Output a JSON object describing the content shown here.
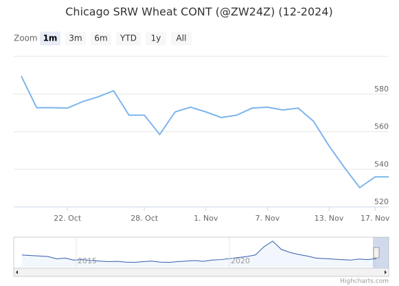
{
  "chart_data": {
    "type": "line",
    "title": "Chicago SRW Wheat CONT (@ZW24Z) (12-2024)",
    "zoom_label": "Zoom",
    "zoom_buttons": [
      "1m",
      "3m",
      "6m",
      "YTD",
      "1y",
      "All"
    ],
    "selected_button": 0,
    "categories": [
      null,
      null,
      null,
      "22. Oct",
      null,
      null,
      null,
      null,
      "28. Oct",
      null,
      null,
      null,
      "1. Nov",
      null,
      null,
      null,
      "7. Nov",
      null,
      null,
      null,
      "13. Nov",
      null,
      null,
      "17. Nov",
      null
    ],
    "series": [
      {
        "name": "ZW24Z",
        "color": "#7cb5ec",
        "values": [
          589.5,
          572.75,
          572.75,
          572.5,
          576,
          578.5,
          581.75,
          568.75,
          568.75,
          558.5,
          570.5,
          573,
          570.5,
          567.5,
          568.75,
          572.5,
          573,
          571.5,
          572.5,
          565.5,
          552.5,
          541,
          530.25,
          536,
          536
        ]
      }
    ],
    "ylim": [
      520,
      600
    ],
    "yticks": [
      520,
      540,
      560,
      580
    ],
    "grid": true,
    "navigator": {
      "labels": [
        "2015",
        "2020"
      ],
      "values": [
        760,
        740,
        720,
        700,
        610,
        640,
        560,
        580,
        540,
        520,
        500,
        510,
        480,
        470,
        500,
        520,
        480,
        470,
        500,
        520,
        540,
        510,
        560,
        580,
        620,
        660,
        700,
        760,
        1080,
        1300,
        980,
        860,
        780,
        720,
        640,
        620,
        600,
        580,
        560,
        600,
        580,
        620
      ],
      "ylim": [
        300,
        1400
      ]
    },
    "credits": "Highcharts.com"
  }
}
